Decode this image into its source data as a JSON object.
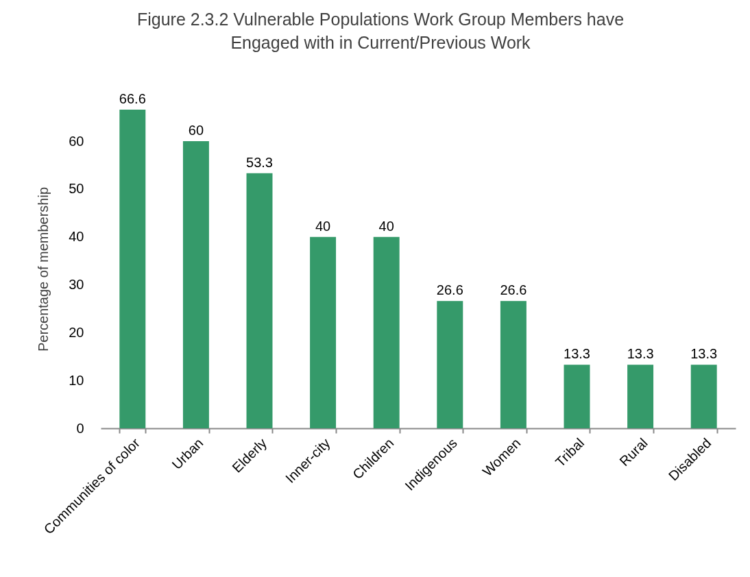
{
  "chart_data": {
    "type": "bar",
    "title": "Figure 2.3.2 Vulnerable Populations Work Group Members have Engaged with in Current/Previous Work",
    "ylabel": "Percentage of membership",
    "categories": [
      "Communities of color",
      "Urban",
      "Elderly",
      "Inner-city",
      "Children",
      "Indigenous",
      "Women",
      "Tribal",
      "Rural",
      "Disabled"
    ],
    "values": [
      66.6,
      60,
      53.3,
      40,
      40,
      26.6,
      26.6,
      13.3,
      13.3,
      13.3
    ],
    "color": "#359a6a",
    "ylim": [
      0,
      66.6
    ],
    "yticks": [
      0,
      10,
      20,
      30,
      40,
      50,
      60
    ],
    "grid": false,
    "data_labels": true
  }
}
